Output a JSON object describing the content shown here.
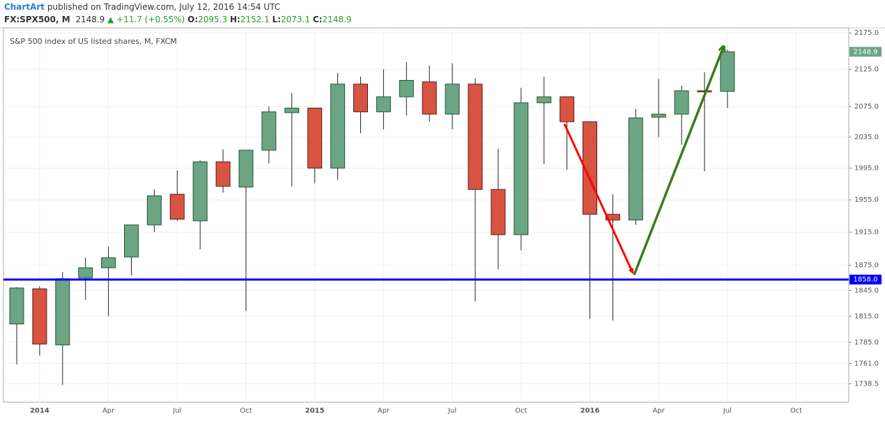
{
  "header": {
    "author": "ChartArt",
    "published": "published on TradingView.com, July 12, 2016 14:54 UTC",
    "symbol": "FX:SPX500, M",
    "change": "▲ +11.7 (+0.55%)",
    "o": "O:",
    "h": "H:",
    "l": "L:",
    "c": "C:"
  },
  "chart_data": {
    "type": "candlestick",
    "title": "S&P 500 index of US listed shares, M, FXCM",
    "categories": [
      null,
      "2014",
      null,
      null,
      "Apr",
      null,
      null,
      "Jul",
      null,
      null,
      "Oct",
      null,
      null,
      "2015",
      null,
      null,
      "Apr",
      null,
      null,
      "Jul",
      null,
      null,
      "Oct",
      null,
      null,
      "2016",
      null,
      null,
      "Apr",
      null,
      null,
      "Jul",
      null,
      null,
      "Oct"
    ],
    "open": [
      1806,
      1847,
      1782,
      1860,
      1872,
      1885,
      1924,
      1962,
      1929,
      2003,
      1971,
      2018,
      2067,
      2073,
      1995,
      2105,
      2068,
      2088,
      2108,
      2065,
      2105,
      1968,
      1912,
      2080,
      2088,
      2055,
      1937,
      1930,
      2061,
      2065,
      2096,
      2095.3,
      null,
      null,
      null
    ],
    "high": [
      1849,
      1850,
      1867,
      1884,
      1897,
      1924,
      1968,
      1992,
      2005,
      2019,
      2018,
      2075,
      2093,
      2073,
      2120,
      2115,
      2125,
      2135,
      2130,
      2133,
      2113,
      2020,
      2100,
      2115,
      2088,
      2055,
      1962,
      2072,
      2112,
      2103,
      2121,
      2152.1,
      null,
      null,
      null
    ],
    "low": [
      1760,
      1770,
      1737,
      1834,
      1815,
      1863,
      1915,
      1929,
      1894,
      1964,
      1821,
      2001,
      1972,
      1976,
      1980,
      2040,
      2045,
      2063,
      2055,
      2045,
      1832,
      1870,
      1893,
      2000,
      1993,
      1812,
      1810,
      1924,
      2035,
      2025,
      1991,
      2073.1,
      null,
      null,
      null
    ],
    "close": [
      1848,
      1783,
      1859,
      1872,
      1884,
      1924,
      1960,
      1931,
      2003,
      1972,
      2018,
      2068,
      2073,
      1995,
      2105,
      2068,
      2088,
      2110,
      2065,
      2105,
      1968,
      1912,
      2080,
      2088,
      2055,
      1937,
      1930,
      2060,
      2065,
      2096,
      2095,
      2148.9,
      null,
      null,
      null
    ],
    "up_color": "#6ba583",
    "down_color": "#d75442",
    "ylim": [
      1718,
      2182
    ],
    "log_scale": true,
    "grid": true,
    "yticks": [
      {
        "value": 2175,
        "label": "2175.0"
      },
      {
        "value": 2125,
        "label": "2125.0"
      },
      {
        "value": 2075,
        "label": "2075.0"
      },
      {
        "value": 2035,
        "label": "2035.0"
      },
      {
        "value": 1995,
        "label": "1995.0"
      },
      {
        "value": 1955,
        "label": "1955.0"
      },
      {
        "value": 1915,
        "label": "1915.0"
      },
      {
        "value": 1875,
        "label": "1875.0"
      },
      {
        "value": 1845,
        "label": "1845.0"
      },
      {
        "value": 1815,
        "label": "1815.0"
      },
      {
        "value": 1785,
        "label": "1785.0"
      },
      {
        "value": 1761,
        "label": "1761.0"
      },
      {
        "value": 1738.5,
        "label": "1738.5"
      }
    ],
    "hline": {
      "value": 1858,
      "label": "1858.0",
      "color": "#0000ff"
    }
  }
}
